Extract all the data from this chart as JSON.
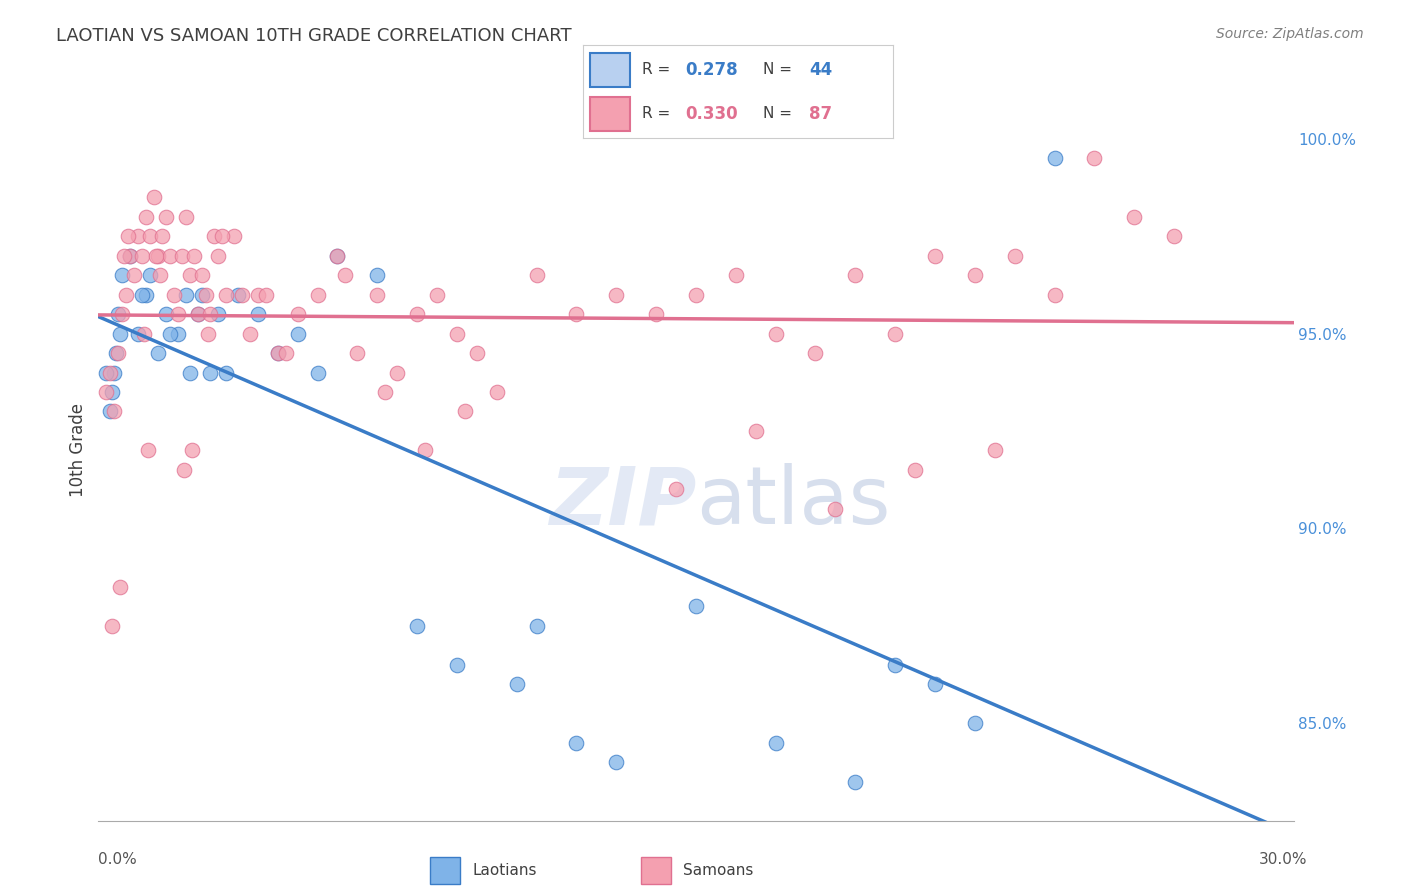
{
  "title": "LAOTIAN VS SAMOAN 10TH GRADE CORRELATION CHART",
  "source": "Source: ZipAtlas.com",
  "xlim": [
    0.0,
    30.0
  ],
  "ylim": [
    82.5,
    101.5
  ],
  "laotian_R": 0.278,
  "laotian_N": 44,
  "samoan_R": 0.33,
  "samoan_N": 87,
  "laotian_color": "#7fb3e8",
  "samoan_color": "#f4a0b0",
  "laotian_line_color": "#3a7cc7",
  "samoan_line_color": "#e07090",
  "background_color": "#ffffff",
  "grid_color": "#d0d8e8",
  "title_color": "#404040",
  "source_color": "#808080",
  "legend_box_laotian": "#b8d0f0",
  "legend_box_samoan": "#f4a0b0",
  "legend_R_color_laotian": "#3a7cc7",
  "legend_R_color_samoan": "#e07090",
  "yticks": [
    85.0,
    90.0,
    95.0,
    100.0
  ],
  "ytick_labels": [
    "85.0%",
    "90.0%",
    "95.0%",
    "100.0%"
  ],
  "laotian_x": [
    0.3,
    0.4,
    0.5,
    0.6,
    0.8,
    1.0,
    1.2,
    1.3,
    1.5,
    1.7,
    2.0,
    2.2,
    2.3,
    2.5,
    2.8,
    3.0,
    3.2,
    3.5,
    4.0,
    4.5,
    5.0,
    5.5,
    6.0,
    7.0,
    8.0,
    9.0,
    10.5,
    11.0,
    12.0,
    13.0,
    15.0,
    17.0,
    19.0,
    20.0,
    21.0,
    22.0,
    0.2,
    0.35,
    0.45,
    0.55,
    1.1,
    1.8,
    2.6,
    24.0
  ],
  "laotian_y": [
    93.0,
    94.0,
    95.5,
    96.5,
    97.0,
    95.0,
    96.0,
    96.5,
    94.5,
    95.5,
    95.0,
    96.0,
    94.0,
    95.5,
    94.0,
    95.5,
    94.0,
    96.0,
    95.5,
    94.5,
    95.0,
    94.0,
    97.0,
    96.5,
    87.5,
    86.5,
    86.0,
    87.5,
    84.5,
    84.0,
    88.0,
    84.5,
    83.5,
    86.5,
    86.0,
    85.0,
    94.0,
    93.5,
    94.5,
    95.0,
    96.0,
    95.0,
    96.0,
    99.5
  ],
  "samoan_x": [
    0.2,
    0.3,
    0.4,
    0.5,
    0.6,
    0.7,
    0.8,
    0.9,
    1.0,
    1.1,
    1.2,
    1.3,
    1.4,
    1.5,
    1.6,
    1.7,
    1.8,
    1.9,
    2.0,
    2.1,
    2.2,
    2.3,
    2.4,
    2.5,
    2.6,
    2.7,
    2.8,
    2.9,
    3.0,
    3.2,
    3.4,
    3.6,
    3.8,
    4.0,
    4.5,
    5.0,
    5.5,
    6.0,
    6.5,
    7.0,
    7.5,
    8.0,
    8.5,
    9.0,
    9.5,
    10.0,
    11.0,
    12.0,
    13.0,
    14.0,
    15.0,
    16.0,
    17.0,
    18.0,
    19.0,
    20.0,
    21.0,
    22.0,
    23.0,
    24.0,
    25.0,
    26.0,
    27.0,
    1.15,
    0.35,
    0.55,
    1.25,
    2.15,
    2.35,
    0.65,
    0.75,
    1.45,
    1.55,
    2.75,
    3.1,
    4.2,
    4.7,
    6.2,
    7.2,
    8.2,
    9.2,
    14.5,
    16.5,
    18.5,
    20.5,
    22.5
  ],
  "samoan_y": [
    93.5,
    94.0,
    93.0,
    94.5,
    95.5,
    96.0,
    97.0,
    96.5,
    97.5,
    97.0,
    98.0,
    97.5,
    98.5,
    97.0,
    97.5,
    98.0,
    97.0,
    96.0,
    95.5,
    97.0,
    98.0,
    96.5,
    97.0,
    95.5,
    96.5,
    96.0,
    95.5,
    97.5,
    97.0,
    96.0,
    97.5,
    96.0,
    95.0,
    96.0,
    94.5,
    95.5,
    96.0,
    97.0,
    94.5,
    96.0,
    94.0,
    95.5,
    96.0,
    95.0,
    94.5,
    93.5,
    96.5,
    95.5,
    96.0,
    95.5,
    96.0,
    96.5,
    95.0,
    94.5,
    96.5,
    95.0,
    97.0,
    96.5,
    97.0,
    96.0,
    99.5,
    98.0,
    97.5,
    95.0,
    87.5,
    88.5,
    92.0,
    91.5,
    92.0,
    97.0,
    97.5,
    97.0,
    96.5,
    95.0,
    97.5,
    96.0,
    94.5,
    96.5,
    93.5,
    92.0,
    93.0,
    91.0,
    92.5,
    90.5,
    91.5,
    92.0
  ]
}
